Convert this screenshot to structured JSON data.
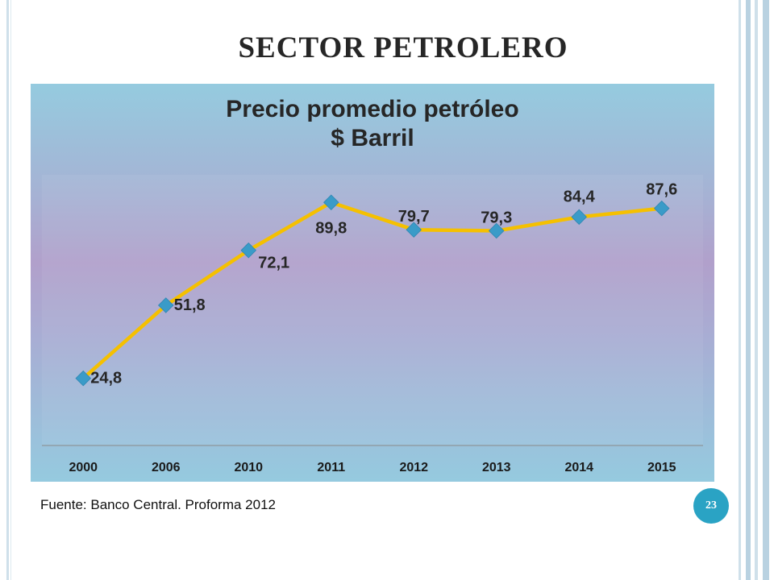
{
  "slide": {
    "title": "SECTOR PETROLERO",
    "source": "Fuente: Banco Central. Proforma 2012",
    "page_number": "23"
  },
  "colors": {
    "line": "#f5c000",
    "marker": "#3a9bc8",
    "page_circle": "#2aa3c4"
  },
  "chart_data": {
    "type": "line",
    "title": "Precio promedio petróleo",
    "subtitle": "$ Barril",
    "categories": [
      "2000",
      "2006",
      "2010",
      "2011",
      "2012",
      "2013",
      "2014",
      "2015"
    ],
    "values": [
      24.8,
      51.8,
      72.1,
      89.8,
      79.7,
      79.3,
      84.4,
      87.6
    ],
    "value_labels": [
      "24,8",
      "51,8",
      "72,1",
      "89,8",
      "79,7",
      "79,3",
      "84,4",
      "87,6"
    ],
    "ylim": [
      0,
      100
    ],
    "grid": false,
    "legend": "none"
  }
}
